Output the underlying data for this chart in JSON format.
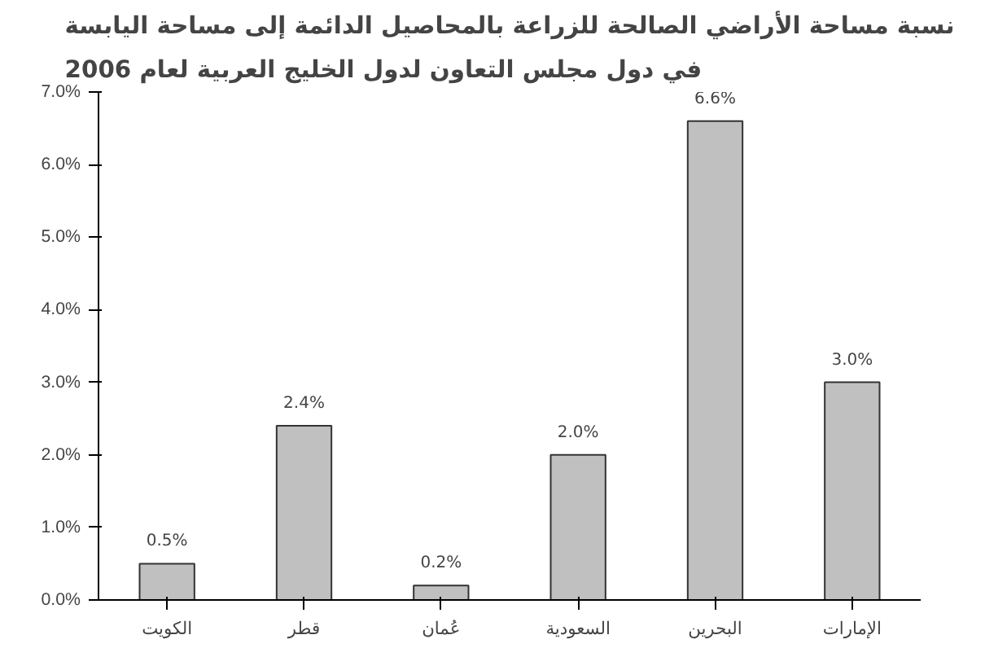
{
  "chart_data": {
    "type": "bar",
    "title": "نسبة مساحة الأراضي الصالحة للزراعة بالمحاصيل الدائمة إلى مساحة اليابسة\nفي دول مجلس التعاون لدول الخليج العربية لعام 2006",
    "categories": [
      "الكويت",
      "قطر",
      "عُمان",
      "السعودية",
      "البحرين",
      "الإمارات"
    ],
    "values": [
      0.5,
      2.4,
      0.2,
      2.0,
      6.6,
      3.0
    ],
    "value_labels": [
      "0.5%",
      "2.4%",
      "0.2%",
      "2.0%",
      "6.6%",
      "3.0%"
    ],
    "color": "#c0c0c0",
    "ylim": [
      0,
      7
    ],
    "yticks": [
      {
        "value": 0,
        "label": "0.0%"
      },
      {
        "value": 1,
        "label": "1.0%"
      },
      {
        "value": 2,
        "label": "2.0%"
      },
      {
        "value": 3,
        "label": "3.0%"
      },
      {
        "value": 4,
        "label": "4.0%"
      },
      {
        "value": 5,
        "label": "5.0%"
      },
      {
        "value": 6,
        "label": "6.0%"
      },
      {
        "value": 7,
        "label": "7.0%"
      }
    ],
    "grid": false
  }
}
